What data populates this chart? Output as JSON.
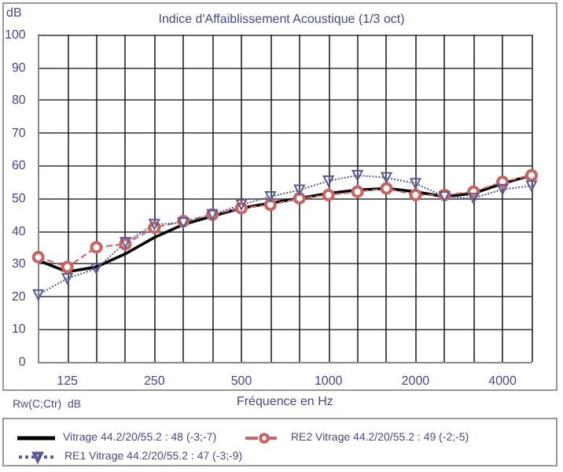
{
  "chart_data": {
    "type": "line",
    "title": "Indice d'Affaiblissement Acoustique (1/3 oct)",
    "xlabel": "Fréquence en Hz",
    "ylabel": "dB",
    "legend_title": "Rw(C;Ctr)  dB",
    "categories": [
      null,
      "125",
      null,
      null,
      "250",
      null,
      null,
      "500",
      null,
      null,
      "1000",
      null,
      null,
      "2000",
      null,
      null,
      "4000",
      null
    ],
    "ylim": [
      0,
      100
    ],
    "yticks": [
      0,
      10,
      20,
      30,
      40,
      50,
      60,
      70,
      80,
      90,
      100
    ],
    "grid": true,
    "legend": "bottom",
    "series": [
      {
        "name": "Vitrage 44.2/20/55.2 : 48 (-3;-7)",
        "color": "#000000",
        "marker": "none",
        "line_style": "solid",
        "values": [
          31,
          27.5,
          29,
          33,
          38,
          42,
          44.5,
          47,
          48.5,
          50,
          51.5,
          52.5,
          53,
          52,
          50.5,
          51.5,
          54.5,
          57
        ]
      },
      {
        "name": "RE2 Vitrage 44.2/20/55.2 : 49 (-2;-5)",
        "color": "#c86464",
        "marker": "circle",
        "line_style": "dashed",
        "values": [
          32,
          29,
          35,
          36,
          41,
          43,
          45,
          47,
          48,
          50,
          51,
          52,
          53,
          51,
          51,
          52,
          55,
          57
        ]
      },
      {
        "name": "RE1 Vitrage 44.2/20/55.2 : 47 (-3;-9)",
        "color": "#5a5a9a",
        "marker": "triangle",
        "line_style": "dotted",
        "values": [
          20.5,
          25.5,
          28.5,
          36.5,
          42,
          42.5,
          45,
          48,
          50.5,
          52.5,
          55.3,
          57,
          56.3,
          54.5,
          50.5,
          50,
          52.7,
          53.8
        ]
      }
    ]
  }
}
